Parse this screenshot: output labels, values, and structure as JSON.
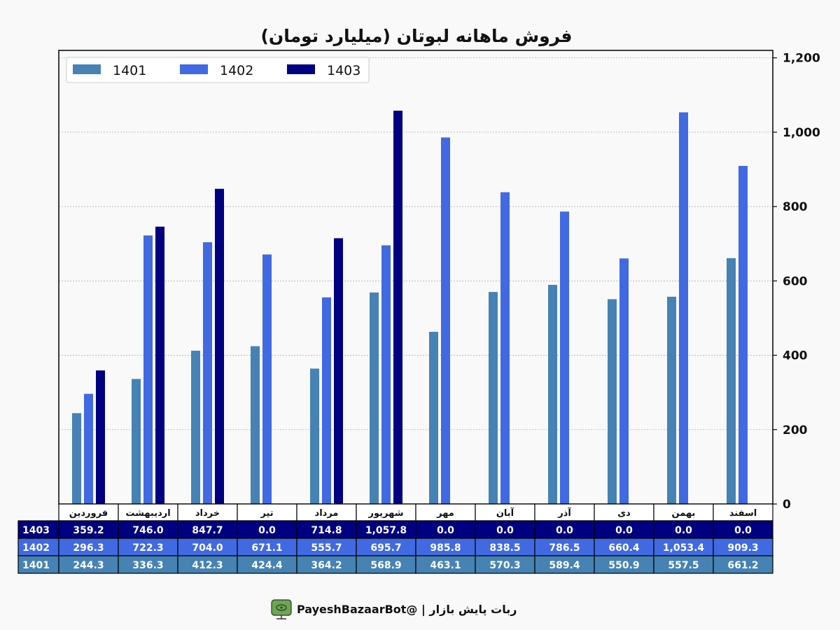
{
  "chart_data": {
    "type": "bar",
    "title": "فروش ماهانه لبوتان (میلیارد تومان)",
    "categories": [
      "فروردین",
      "اردیبهشت",
      "خرداد",
      "تیر",
      "مرداد",
      "شهریور",
      "مهر",
      "آبان",
      "آذر",
      "دی",
      "بهمن",
      "اسفند"
    ],
    "series": [
      {
        "name": "1401",
        "color": "#4682b4",
        "values": [
          244.3,
          336.3,
          412.3,
          424.4,
          364.2,
          568.9,
          463.1,
          570.3,
          589.4,
          550.9,
          557.5,
          661.2
        ]
      },
      {
        "name": "1402",
        "color": "#4169e1",
        "values": [
          296.3,
          722.3,
          704.0,
          671.1,
          555.7,
          695.7,
          985.8,
          838.5,
          786.5,
          660.4,
          1053.4,
          909.3
        ]
      },
      {
        "name": "1403",
        "color": "#000080",
        "values": [
          359.2,
          746.0,
          847.7,
          0.0,
          714.8,
          1057.8,
          0.0,
          0.0,
          0.0,
          0.0,
          0.0,
          0.0
        ]
      }
    ],
    "ylim": [
      0,
      1220
    ],
    "yticks": [
      0,
      200,
      400,
      600,
      800,
      1000,
      1200
    ],
    "ytick_labels": [
      "0",
      "200",
      "400",
      "600",
      "800",
      "1,000",
      "1,200"
    ],
    "y_axis_side": "right",
    "grid": true,
    "legend": "top-left",
    "table": {
      "rows": [
        {
          "label": "1403",
          "color": "#000080",
          "cells": [
            "359.2",
            "746.0",
            "847.7",
            "0.0",
            "714.8",
            "1,057.8",
            "0.0",
            "0.0",
            "0.0",
            "0.0",
            "0.0",
            "0.0"
          ]
        },
        {
          "label": "1402",
          "color": "#4169e1",
          "cells": [
            "296.3",
            "722.3",
            "704.0",
            "671.1",
            "555.7",
            "695.7",
            "985.8",
            "838.5",
            "786.5",
            "660.4",
            "1,053.4",
            "909.3"
          ]
        },
        {
          "label": "1401",
          "color": "#4682b4",
          "cells": [
            "244.3",
            "336.3",
            "412.3",
            "424.4",
            "364.2",
            "568.9",
            "463.1",
            "570.3",
            "589.4",
            "550.9",
            "557.5",
            "661.2"
          ]
        }
      ]
    }
  },
  "footer": {
    "text": "ربات پایش بازار  |  @PayeshBazaarBot",
    "icon": "robot-icon"
  }
}
